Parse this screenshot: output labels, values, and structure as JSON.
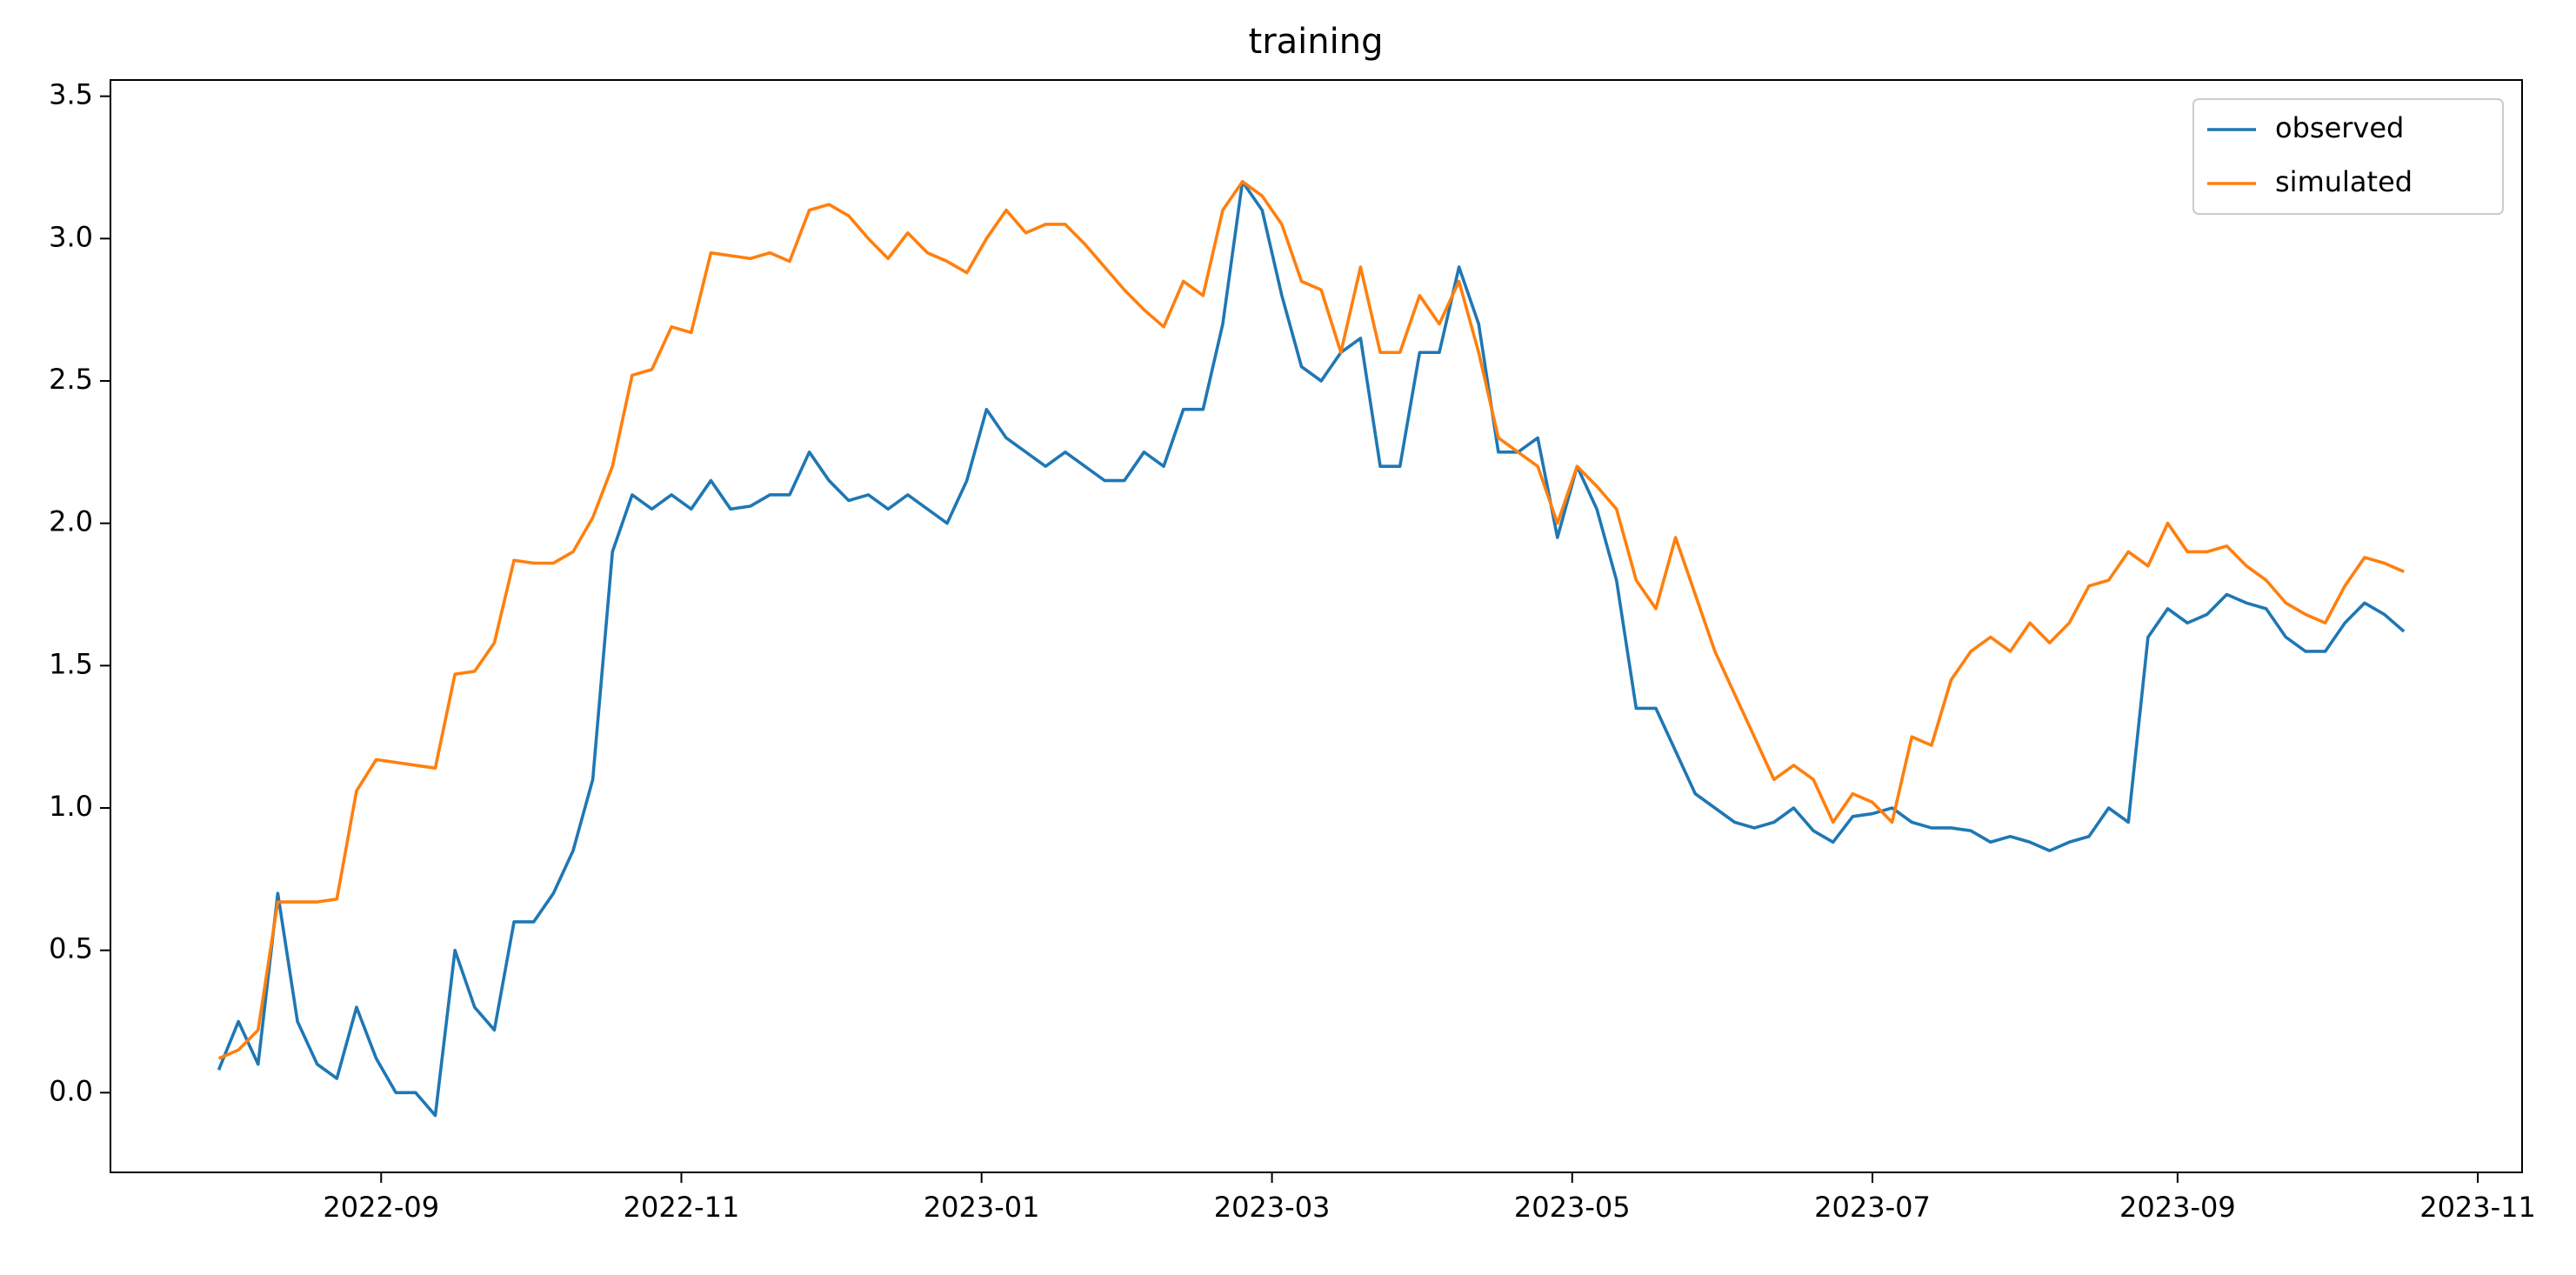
{
  "chart_data": {
    "type": "line",
    "title": "training",
    "x": [
      "2022-07-30",
      "2022-08-03",
      "2022-08-07",
      "2022-08-11",
      "2022-08-15",
      "2022-08-19",
      "2022-08-23",
      "2022-08-27",
      "2022-08-31",
      "2022-09-04",
      "2022-09-08",
      "2022-09-12",
      "2022-09-16",
      "2022-09-20",
      "2022-09-24",
      "2022-09-28",
      "2022-10-02",
      "2022-10-06",
      "2022-10-10",
      "2022-10-14",
      "2022-10-18",
      "2022-10-22",
      "2022-10-26",
      "2022-10-30",
      "2022-11-03",
      "2022-11-07",
      "2022-11-11",
      "2022-11-15",
      "2022-11-19",
      "2022-11-23",
      "2022-11-27",
      "2022-12-01",
      "2022-12-05",
      "2022-12-09",
      "2022-12-13",
      "2022-12-17",
      "2022-12-21",
      "2022-12-25",
      "2022-12-29",
      "2023-01-02",
      "2023-01-06",
      "2023-01-10",
      "2023-01-14",
      "2023-01-18",
      "2023-01-22",
      "2023-01-26",
      "2023-01-30",
      "2023-02-03",
      "2023-02-07",
      "2023-02-11",
      "2023-02-15",
      "2023-02-19",
      "2023-02-23",
      "2023-02-27",
      "2023-03-03",
      "2023-03-07",
      "2023-03-11",
      "2023-03-15",
      "2023-03-19",
      "2023-03-23",
      "2023-03-27",
      "2023-03-31",
      "2023-04-04",
      "2023-04-08",
      "2023-04-12",
      "2023-04-16",
      "2023-04-20",
      "2023-04-24",
      "2023-04-28",
      "2023-05-02",
      "2023-05-06",
      "2023-05-10",
      "2023-05-14",
      "2023-05-18",
      "2023-05-22",
      "2023-05-26",
      "2023-05-30",
      "2023-06-03",
      "2023-06-07",
      "2023-06-11",
      "2023-06-15",
      "2023-06-19",
      "2023-06-23",
      "2023-06-27",
      "2023-07-01",
      "2023-07-05",
      "2023-07-09",
      "2023-07-13",
      "2023-07-17",
      "2023-07-21",
      "2023-07-25",
      "2023-07-29",
      "2023-08-02",
      "2023-08-06",
      "2023-08-10",
      "2023-08-14",
      "2023-08-18",
      "2023-08-22",
      "2023-08-26",
      "2023-08-30",
      "2023-09-03",
      "2023-09-07",
      "2023-09-11",
      "2023-09-15",
      "2023-09-19",
      "2023-09-23",
      "2023-09-27",
      "2023-10-01",
      "2023-10-05",
      "2023-10-09",
      "2023-10-13",
      "2023-10-17"
    ],
    "series": [
      {
        "name": "observed",
        "color": "#1f77b4",
        "values": [
          0.08,
          0.25,
          0.1,
          0.7,
          0.25,
          0.1,
          0.05,
          0.3,
          0.12,
          0.0,
          0.0,
          -0.08,
          0.5,
          0.3,
          0.22,
          0.6,
          0.6,
          0.7,
          0.85,
          1.1,
          1.9,
          2.1,
          2.05,
          2.1,
          2.05,
          2.15,
          2.05,
          2.06,
          2.1,
          2.1,
          2.25,
          2.15,
          2.08,
          2.1,
          2.05,
          2.1,
          2.05,
          2.0,
          2.15,
          2.4,
          2.3,
          2.25,
          2.2,
          2.25,
          2.2,
          2.15,
          2.15,
          2.25,
          2.2,
          2.4,
          2.4,
          2.7,
          3.2,
          3.1,
          2.8,
          2.55,
          2.5,
          2.6,
          2.65,
          2.2,
          2.2,
          2.6,
          2.6,
          2.9,
          2.7,
          2.25,
          2.25,
          2.3,
          1.95,
          2.2,
          2.05,
          1.8,
          1.35,
          1.35,
          1.2,
          1.05,
          1.0,
          0.95,
          0.93,
          0.95,
          1.0,
          0.92,
          0.88,
          0.97,
          0.98,
          1.0,
          0.95,
          0.93,
          0.93,
          0.92,
          0.88,
          0.9,
          0.88,
          0.85,
          0.88,
          0.9,
          1.0,
          0.95,
          1.6,
          1.7,
          1.65,
          1.68,
          1.75,
          1.72,
          1.7,
          1.6,
          1.55,
          1.55,
          1.65,
          1.72,
          1.68,
          1.62
        ]
      },
      {
        "name": "simulated",
        "color": "#ff7f0e",
        "values": [
          0.12,
          0.15,
          0.22,
          0.67,
          0.67,
          0.67,
          0.68,
          1.06,
          1.17,
          1.16,
          1.15,
          1.14,
          1.47,
          1.48,
          1.58,
          1.87,
          1.86,
          1.86,
          1.9,
          2.02,
          2.2,
          2.52,
          2.54,
          2.69,
          2.67,
          2.95,
          2.94,
          2.93,
          2.95,
          2.92,
          3.1,
          3.12,
          3.08,
          3.0,
          2.93,
          3.02,
          2.95,
          2.92,
          2.88,
          3.0,
          3.1,
          3.02,
          3.05,
          3.05,
          2.98,
          2.9,
          2.82,
          2.75,
          2.69,
          2.85,
          2.8,
          3.1,
          3.2,
          3.15,
          3.05,
          2.85,
          2.82,
          2.6,
          2.9,
          2.6,
          2.6,
          2.8,
          2.7,
          2.85,
          2.6,
          2.3,
          2.25,
          2.2,
          2.0,
          2.2,
          2.13,
          2.05,
          1.8,
          1.7,
          1.95,
          1.75,
          1.55,
          1.4,
          1.25,
          1.1,
          1.15,
          1.1,
          0.95,
          1.05,
          1.02,
          0.95,
          1.25,
          1.22,
          1.45,
          1.55,
          1.6,
          1.55,
          1.65,
          1.58,
          1.65,
          1.78,
          1.8,
          1.9,
          1.85,
          2.0,
          1.9,
          1.9,
          1.92,
          1.85,
          1.8,
          1.72,
          1.68,
          1.65,
          1.78,
          1.88,
          1.86,
          1.83
        ]
      }
    ],
    "xlim": [
      "2022-07-08",
      "2023-11-10"
    ],
    "xticks": [
      "2022-09",
      "2022-11",
      "2023-01",
      "2023-03",
      "2023-05",
      "2023-07",
      "2023-09",
      "2023-11"
    ],
    "ylim": [
      -0.28,
      3.557
    ],
    "yticks": [
      0.0,
      0.5,
      1.0,
      1.5,
      2.0,
      2.5,
      3.0,
      3.5
    ],
    "legend": "upper right"
  }
}
